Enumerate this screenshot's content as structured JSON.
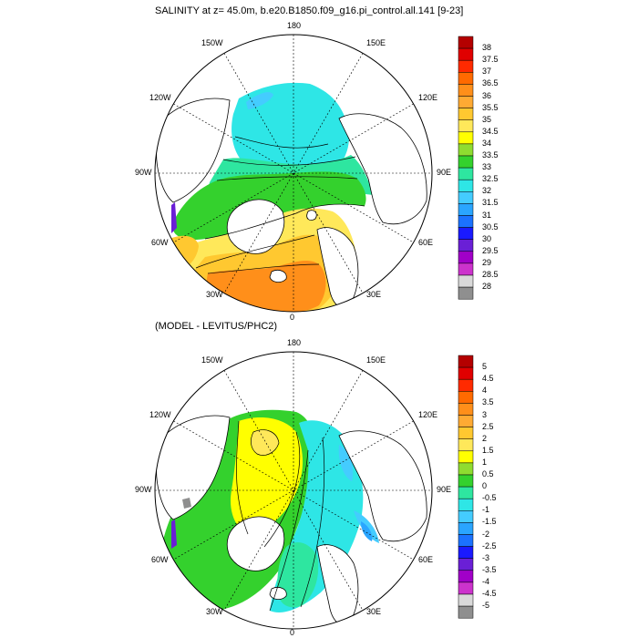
{
  "panels": [
    {
      "title": "SALINITY at z=  45.0m, b.e20.B1850.f09_g16.pi_control.all.141 [9-23]",
      "colorbar": {
        "labels": [
          "38",
          "37.5",
          "37",
          "36.5",
          "36",
          "35.5",
          "35",
          "34.5",
          "34",
          "33.5",
          "33",
          "32.5",
          "32",
          "31.5",
          "31",
          "30.5",
          "30",
          "29.5",
          "29",
          "28.5",
          "28"
        ],
        "colors": [
          "#b40000",
          "#e00000",
          "#ff2a00",
          "#ff6a00",
          "#ff8f1a",
          "#ffaa33",
          "#ffc830",
          "#ffe85a",
          "#ffff00",
          "#8fdc30",
          "#34d12d",
          "#2ee6a0",
          "#2ee6e6",
          "#44ccff",
          "#2aa5ff",
          "#1b72ff",
          "#1a1aff",
          "#6a1fd6",
          "#a100c8",
          "#cc33cc",
          "#d9d9d9",
          "#8f8f8f"
        ]
      },
      "lon_labels": {
        "top": "180",
        "bottom": "0",
        "left": "90W",
        "right": "90E",
        "ul1": "150W",
        "ul2": "120W",
        "ur1": "150E",
        "ur2": "120E",
        "ll1": "60W",
        "ll2": "30W",
        "lr1": "60E",
        "lr2": "30E"
      }
    },
    {
      "title": "(MODEL - LEVITUS/PHC2)",
      "colorbar": {
        "labels": [
          "5",
          "4.5",
          "4",
          "3.5",
          "3",
          "2.5",
          "2",
          "1.5",
          "1",
          "0.5",
          "0",
          "-0.5",
          "-1",
          "-1.5",
          "-2",
          "-2.5",
          "-3",
          "-3.5",
          "-4",
          "-4.5",
          "-5"
        ],
        "colors": [
          "#b40000",
          "#e00000",
          "#ff2a00",
          "#ff6a00",
          "#ff8f1a",
          "#ffaa33",
          "#ffc830",
          "#ffe85a",
          "#ffff00",
          "#8fdc30",
          "#34d12d",
          "#2ee6a0",
          "#2ee6e6",
          "#44ccff",
          "#2aa5ff",
          "#1b72ff",
          "#1a1aff",
          "#6a1fd6",
          "#a100c8",
          "#cc33cc",
          "#d9d9d9",
          "#8f8f8f"
        ]
      },
      "lon_labels": {
        "top": "180",
        "bottom": "0",
        "left": "90W",
        "right": "90E",
        "ul1": "150W",
        "ul2": "120W",
        "ur1": "150E",
        "ur2": "120E",
        "ll1": "60W",
        "ll2": "30W",
        "lr1": "60E",
        "lr2": "30E"
      }
    }
  ]
}
